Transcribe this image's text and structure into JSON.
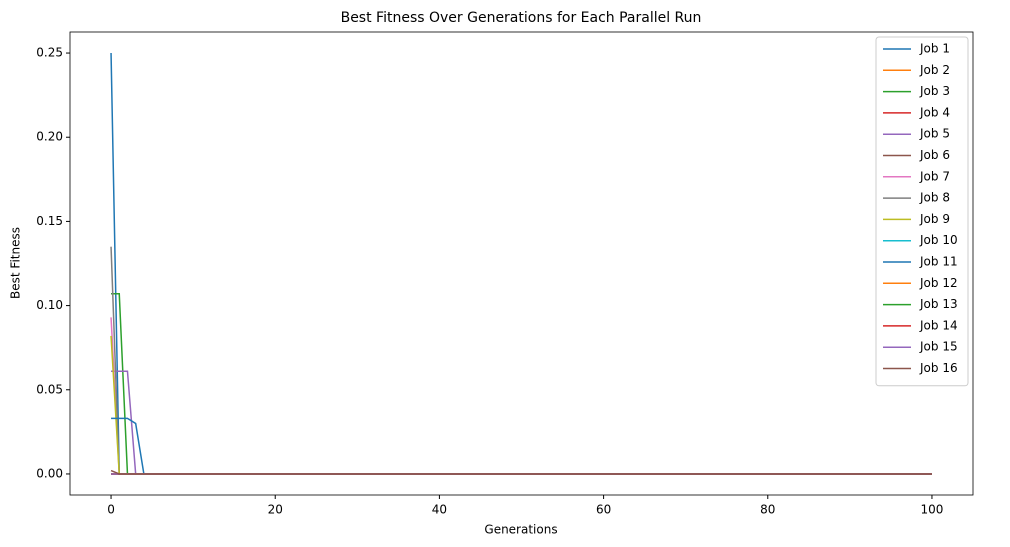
{
  "chart_data": {
    "type": "line",
    "title": "Best Fitness Over Generations for Each Parallel Run",
    "x_label": "Generations",
    "y_label": "Best Fitness",
    "xlim": [
      -5,
      105
    ],
    "ylim": [
      -0.0125,
      0.2625
    ],
    "xticks": [
      0,
      20,
      40,
      60,
      80,
      100
    ],
    "yticks": [
      {
        "value": 0,
        "label": "0.00"
      },
      {
        "value": 0.05,
        "label": "0.05"
      },
      {
        "value": 0.1,
        "label": "0.10"
      },
      {
        "value": 0.15,
        "label": "0.15"
      },
      {
        "value": 0.2,
        "label": "0.20"
      },
      {
        "value": 0.25,
        "label": "0.25"
      }
    ],
    "legend": "upper right",
    "series": [
      {
        "name": "Job 1",
        "color": "#1f77b4",
        "x": [
          0,
          1,
          100
        ],
        "values": [
          0.25,
          0,
          0
        ]
      },
      {
        "name": "Job 2",
        "color": "#ff7f0e",
        "x": [
          0,
          100
        ],
        "values": [
          0,
          0
        ]
      },
      {
        "name": "Job 3",
        "color": "#2ca02c",
        "x": [
          0,
          1,
          2,
          100
        ],
        "values": [
          0.107,
          0.107,
          0,
          0
        ]
      },
      {
        "name": "Job 4",
        "color": "#d62728",
        "x": [
          0,
          100
        ],
        "values": [
          0,
          0
        ]
      },
      {
        "name": "Job 5",
        "color": "#9467bd",
        "x": [
          0,
          1,
          2,
          3,
          100
        ],
        "values": [
          0.061,
          0.061,
          0.061,
          0,
          0
        ]
      },
      {
        "name": "Job 6",
        "color": "#8c564b",
        "x": [
          0,
          100
        ],
        "values": [
          0,
          0
        ]
      },
      {
        "name": "Job 7",
        "color": "#e377c2",
        "x": [
          0,
          1,
          100
        ],
        "values": [
          0.093,
          0,
          0
        ]
      },
      {
        "name": "Job 8",
        "color": "#7f7f7f",
        "x": [
          0,
          1,
          100
        ],
        "values": [
          0.135,
          0,
          0
        ]
      },
      {
        "name": "Job 9",
        "color": "#bcbd22",
        "x": [
          0,
          1,
          100
        ],
        "values": [
          0.082,
          0,
          0
        ]
      },
      {
        "name": "Job 10",
        "color": "#17becf",
        "x": [
          0,
          100
        ],
        "values": [
          0,
          0
        ]
      },
      {
        "name": "Job 11",
        "color": "#1f77b4",
        "x": [
          0,
          1,
          2,
          3,
          4,
          100
        ],
        "values": [
          0.033,
          0.033,
          0.033,
          0.03,
          0,
          0
        ]
      },
      {
        "name": "Job 12",
        "color": "#ff7f0e",
        "x": [
          0,
          100
        ],
        "values": [
          0,
          0
        ]
      },
      {
        "name": "Job 13",
        "color": "#2ca02c",
        "x": [
          0,
          100
        ],
        "values": [
          0,
          0
        ]
      },
      {
        "name": "Job 14",
        "color": "#d62728",
        "x": [
          0,
          100
        ],
        "values": [
          0,
          0
        ]
      },
      {
        "name": "Job 15",
        "color": "#9467bd",
        "x": [
          0,
          100
        ],
        "values": [
          0,
          0
        ]
      },
      {
        "name": "Job 16",
        "color": "#8c564b",
        "x": [
          0,
          1,
          100
        ],
        "values": [
          0.002,
          0,
          0
        ]
      }
    ]
  }
}
